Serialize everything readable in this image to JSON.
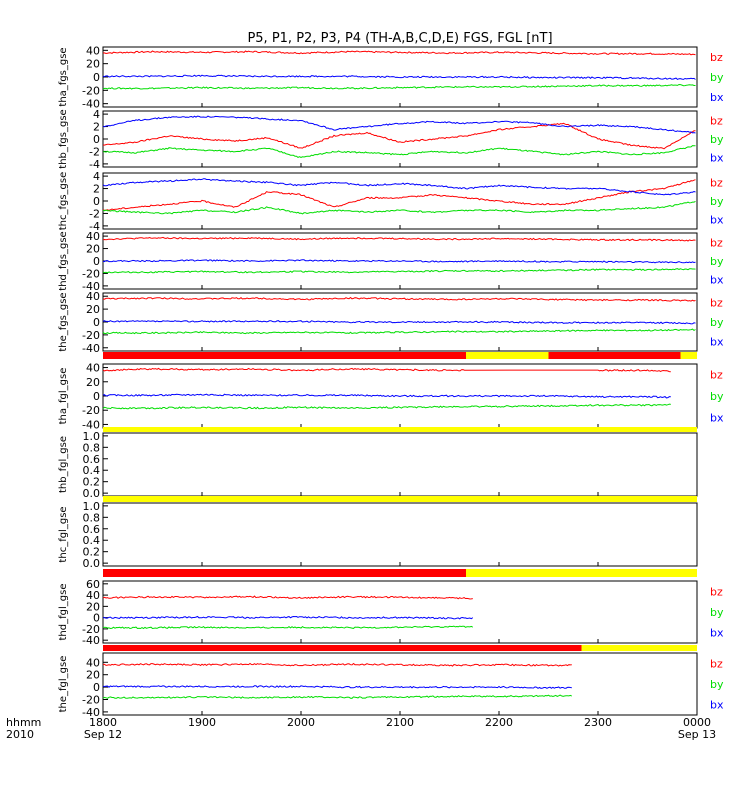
{
  "title": "P5, P1, P2, P3, P4 (TH-A,B,C,D,E) FGS, FGL [nT]",
  "time_axis": {
    "left_label_line1": "hhmm",
    "left_label_line2": "2010",
    "ticks": [
      "1800",
      "1900",
      "2000",
      "2100",
      "2200",
      "2300",
      "0000"
    ],
    "tick_dates": [
      "Sep 12",
      "",
      "",
      "",
      "",
      "",
      "Sep 13"
    ]
  },
  "colors": {
    "bx": "#0000ff",
    "by": "#00dd00",
    "bz": "#ff0000",
    "availability_on": "#ff0000",
    "availability_off": "#ffff00",
    "availability_marker": "#000000"
  },
  "chart_data": [
    {
      "type": "line",
      "ylabel": "tha_fgs_gse",
      "yticks": [
        "40",
        "20",
        "0",
        "-20",
        "-40"
      ],
      "ylim": [
        -45,
        45
      ],
      "legend": [
        "bz",
        "by",
        "bx"
      ],
      "series": [
        {
          "name": "bz",
          "x": [
            1800,
            1830,
            1900,
            1930,
            2000,
            2030,
            2100,
            2130,
            2200,
            2230,
            2300,
            2330,
            2400
          ],
          "values": [
            36,
            38,
            37,
            38,
            36,
            38,
            37,
            36,
            37,
            36,
            35,
            35,
            34
          ]
        },
        {
          "name": "by",
          "x": [
            1800,
            1830,
            1900,
            1930,
            2000,
            2030,
            2100,
            2130,
            2200,
            2230,
            2300,
            2330,
            2400
          ],
          "values": [
            -17,
            -17,
            -16,
            -17,
            -16,
            -17,
            -16,
            -15,
            -15,
            -14,
            -13,
            -13,
            -12
          ]
        },
        {
          "name": "bx",
          "x": [
            1800,
            1830,
            1900,
            1930,
            2000,
            2030,
            2100,
            2130,
            2200,
            2230,
            2300,
            2330,
            2400
          ],
          "values": [
            1,
            1,
            2,
            1,
            1,
            1,
            0,
            0,
            0,
            -1,
            -1,
            -2,
            -3
          ]
        }
      ]
    },
    {
      "type": "line",
      "ylabel": "thb_fgs_gse",
      "yticks": [
        "4",
        "2",
        "0",
        "-2",
        "-4"
      ],
      "ylim": [
        -4.5,
        4.5
      ],
      "legend": [
        "bz",
        "by",
        "bx"
      ],
      "series": [
        {
          "name": "bz",
          "x": [
            1800,
            1820,
            1840,
            1900,
            1920,
            1940,
            2000,
            2020,
            2040,
            2100,
            2120,
            2140,
            2200,
            2220,
            2240,
            2300,
            2320,
            2340,
            2400
          ],
          "values": [
            -1.0,
            -0.5,
            0.5,
            0.0,
            -0.3,
            0.2,
            -1.5,
            0.5,
            1.0,
            -0.5,
            0.0,
            0.5,
            1.5,
            2.0,
            2.5,
            0.0,
            -1.0,
            -1.5,
            1.5
          ]
        },
        {
          "name": "by",
          "x": [
            1800,
            1820,
            1840,
            1900,
            1920,
            1940,
            2000,
            2020,
            2040,
            2100,
            2120,
            2140,
            2200,
            2220,
            2240,
            2300,
            2320,
            2340,
            2400
          ],
          "values": [
            -2.0,
            -2.2,
            -1.5,
            -1.8,
            -2.0,
            -1.5,
            -3.0,
            -2.0,
            -2.2,
            -2.5,
            -2.0,
            -2.2,
            -1.5,
            -2.0,
            -2.5,
            -2.0,
            -2.5,
            -2.2,
            -1.0
          ]
        },
        {
          "name": "bx",
          "x": [
            1800,
            1820,
            1840,
            1900,
            1920,
            1940,
            2000,
            2020,
            2040,
            2100,
            2120,
            2140,
            2200,
            2220,
            2240,
            2300,
            2320,
            2340,
            2400
          ],
          "values": [
            2.0,
            3.0,
            3.5,
            3.6,
            3.5,
            3.2,
            3.0,
            1.5,
            2.0,
            2.5,
            2.8,
            2.5,
            2.8,
            2.6,
            2.0,
            2.2,
            2.0,
            1.5,
            1.0
          ]
        }
      ]
    },
    {
      "type": "line",
      "ylabel": "thc_fgs_gse",
      "yticks": [
        "4",
        "2",
        "0",
        "-2",
        "-4"
      ],
      "ylim": [
        -4.5,
        4.5
      ],
      "legend": [
        "bz",
        "by",
        "bx"
      ],
      "series": [
        {
          "name": "bz",
          "x": [
            1800,
            1820,
            1840,
            1900,
            1920,
            1940,
            2000,
            2020,
            2040,
            2100,
            2120,
            2140,
            2200,
            2220,
            2240,
            2300,
            2320,
            2340,
            2400
          ],
          "values": [
            -1.5,
            -1.0,
            -0.5,
            0.0,
            -1.0,
            1.5,
            1.0,
            -1.0,
            0.5,
            0.5,
            1.0,
            0.5,
            0.0,
            -0.5,
            -0.5,
            0.5,
            1.5,
            2.0,
            3.5
          ]
        },
        {
          "name": "by",
          "x": [
            1800,
            1820,
            1840,
            1900,
            1920,
            1940,
            2000,
            2020,
            2040,
            2100,
            2120,
            2140,
            2200,
            2220,
            2240,
            2300,
            2320,
            2340,
            2400
          ],
          "values": [
            -1.5,
            -1.8,
            -2.0,
            -1.5,
            -1.8,
            -1.0,
            -2.0,
            -1.5,
            -1.8,
            -1.5,
            -1.8,
            -1.5,
            -1.5,
            -1.8,
            -1.5,
            -1.5,
            -1.2,
            -1.0,
            0.0
          ]
        },
        {
          "name": "bx",
          "x": [
            1800,
            1820,
            1840,
            1900,
            1920,
            1940,
            2000,
            2020,
            2040,
            2100,
            2120,
            2140,
            2200,
            2220,
            2240,
            2300,
            2320,
            2340,
            2400
          ],
          "values": [
            2.5,
            3.0,
            3.2,
            3.5,
            3.2,
            3.0,
            2.5,
            3.0,
            2.5,
            2.8,
            2.5,
            2.0,
            2.5,
            2.2,
            2.0,
            2.0,
            1.5,
            1.0,
            1.5
          ]
        }
      ]
    },
    {
      "type": "line",
      "ylabel": "thd_fgs_gse",
      "yticks": [
        "40",
        "20",
        "0",
        "-20",
        "-40"
      ],
      "ylim": [
        -45,
        45
      ],
      "legend": [
        "bz",
        "by",
        "bx"
      ],
      "series": [
        {
          "name": "bz",
          "x": [
            1800,
            1830,
            1900,
            1930,
            2000,
            2030,
            2100,
            2130,
            2200,
            2230,
            2300,
            2330,
            2400
          ],
          "values": [
            35,
            37,
            36,
            37,
            35,
            37,
            36,
            35,
            36,
            35,
            34,
            34,
            33
          ]
        },
        {
          "name": "by",
          "x": [
            1800,
            1830,
            1900,
            1930,
            2000,
            2030,
            2100,
            2130,
            2200,
            2230,
            2300,
            2330,
            2400
          ],
          "values": [
            -18,
            -18,
            -17,
            -18,
            -17,
            -18,
            -17,
            -16,
            -16,
            -15,
            -14,
            -14,
            -13
          ]
        },
        {
          "name": "bx",
          "x": [
            1800,
            1830,
            1900,
            1930,
            2000,
            2030,
            2100,
            2130,
            2200,
            2230,
            2300,
            2330,
            2400
          ],
          "values": [
            0,
            0,
            1,
            0,
            1,
            0,
            0,
            -1,
            0,
            -1,
            -1,
            -2,
            -2
          ]
        }
      ]
    },
    {
      "type": "line",
      "ylabel": "the_fgs_gse",
      "yticks": [
        "40",
        "20",
        "0",
        "-20",
        "-40"
      ],
      "ylim": [
        -45,
        45
      ],
      "legend": [
        "bz",
        "by",
        "bx"
      ],
      "series": [
        {
          "name": "bz",
          "x": [
            1800,
            1830,
            1900,
            1930,
            2000,
            2030,
            2100,
            2130,
            2200,
            2230,
            2300,
            2330,
            2400
          ],
          "values": [
            36,
            37,
            36,
            37,
            35,
            37,
            36,
            35,
            36,
            35,
            34,
            34,
            33
          ]
        },
        {
          "name": "by",
          "x": [
            1800,
            1830,
            1900,
            1930,
            2000,
            2030,
            2100,
            2130,
            2200,
            2230,
            2300,
            2330,
            2400
          ],
          "values": [
            -17,
            -17,
            -16,
            -17,
            -16,
            -17,
            -16,
            -15,
            -15,
            -14,
            -13,
            -13,
            -12
          ]
        },
        {
          "name": "bx",
          "x": [
            1800,
            1830,
            1900,
            1930,
            2000,
            2030,
            2100,
            2130,
            2200,
            2230,
            2300,
            2330,
            2400
          ],
          "values": [
            1,
            1,
            1,
            1,
            1,
            0,
            0,
            0,
            0,
            -1,
            -1,
            -1,
            -2
          ]
        }
      ]
    },
    {
      "type": "line",
      "ylabel": "tha_fgl_gse",
      "yticks": [
        "40",
        "20",
        "0",
        "-20",
        "-40"
      ],
      "ylim": [
        -45,
        45
      ],
      "legend": [
        "bz",
        "by",
        "bx"
      ],
      "availability": [
        {
          "start": 1800,
          "end": 2140,
          "state": "on"
        },
        {
          "start": 2140,
          "end": 2230,
          "state": "off"
        },
        {
          "start": 2230,
          "end": 2350,
          "state": "on"
        },
        {
          "start": 2350,
          "end": 2400,
          "state": "off"
        }
      ],
      "series": [
        {
          "name": "bz",
          "x": [
            1800,
            1830,
            1900,
            1930,
            2000,
            2030,
            2100,
            2130,
            2140,
            2230,
            2300,
            2330,
            2345
          ],
          "values": [
            36,
            38,
            37,
            38,
            36,
            38,
            37,
            36,
            36,
            null,
            36,
            36,
            35
          ]
        },
        {
          "name": "by",
          "x": [
            1800,
            1830,
            1900,
            1930,
            2000,
            2030,
            2100,
            2130,
            2140,
            2230,
            2300,
            2330,
            2345
          ],
          "values": [
            -17,
            -17,
            -16,
            -17,
            -16,
            -17,
            -16,
            -15,
            -15,
            -14,
            -13,
            -13,
            -12
          ]
        },
        {
          "name": "bx",
          "x": [
            1800,
            1830,
            1900,
            1930,
            2000,
            2030,
            2100,
            2130,
            2140,
            2230,
            2300,
            2330,
            2345
          ],
          "values": [
            1,
            1,
            2,
            1,
            1,
            1,
            0,
            0,
            0,
            0,
            -1,
            -1,
            -2
          ]
        }
      ]
    },
    {
      "type": "line",
      "ylabel": "thb_fgl_gse",
      "yticks": [
        "1.0",
        "0.8",
        "0.6",
        "0.4",
        "0.2",
        "0.0"
      ],
      "ylim": [
        -0.05,
        1.05
      ],
      "legend": [],
      "availability": [
        {
          "start": 1800,
          "end": 2400,
          "state": "off"
        }
      ],
      "series": []
    },
    {
      "type": "line",
      "ylabel": "thc_fgl_gse",
      "yticks": [
        "1.0",
        "0.8",
        "0.6",
        "0.4",
        "0.2",
        "0.0"
      ],
      "ylim": [
        -0.05,
        1.05
      ],
      "legend": [],
      "availability": [
        {
          "start": 1800,
          "end": 2400,
          "state": "off"
        }
      ],
      "series": []
    },
    {
      "type": "line",
      "ylabel": "thd_fgl_gse",
      "yticks": [
        "60",
        "40",
        "20",
        "0",
        "-20",
        "-40"
      ],
      "ylim": [
        -45,
        65
      ],
      "legend": [
        "bz",
        "by",
        "bx"
      ],
      "availability": [
        {
          "start": 1800,
          "end": 2140,
          "state": "on"
        },
        {
          "start": 2140,
          "end": 2400,
          "state": "off"
        }
      ],
      "series": [
        {
          "name": "bz",
          "x": [
            1800,
            1830,
            1900,
            1930,
            2000,
            2030,
            2100,
            2130,
            2145
          ],
          "values": [
            35,
            37,
            36,
            37,
            35,
            37,
            36,
            35,
            34
          ]
        },
        {
          "name": "by",
          "x": [
            1800,
            1830,
            1900,
            1930,
            2000,
            2030,
            2100,
            2130,
            2145
          ],
          "values": [
            -18,
            -18,
            -17,
            -18,
            -17,
            -18,
            -17,
            -16,
            -16
          ]
        },
        {
          "name": "bx",
          "x": [
            1800,
            1830,
            1900,
            1930,
            2000,
            2030,
            2100,
            2130,
            2145
          ],
          "values": [
            0,
            0,
            1,
            0,
            1,
            0,
            0,
            -1,
            -1
          ]
        }
      ]
    },
    {
      "type": "line",
      "ylabel": "the_fgl_gse",
      "yticks": [
        "40",
        "20",
        "0",
        "-20",
        "-40"
      ],
      "ylim": [
        -45,
        55
      ],
      "legend": [
        "bz",
        "by",
        "bx"
      ],
      "availability": [
        {
          "start": 1800,
          "end": 2250,
          "state": "on"
        },
        {
          "start": 2250,
          "end": 2400,
          "state": "off"
        }
      ],
      "series": [
        {
          "name": "bz",
          "x": [
            1800,
            1830,
            1900,
            1930,
            2000,
            2030,
            2100,
            2130,
            2200,
            2230,
            2245
          ],
          "values": [
            36,
            37,
            36,
            37,
            35,
            37,
            36,
            35,
            36,
            35,
            35
          ]
        },
        {
          "name": "by",
          "x": [
            1800,
            1830,
            1900,
            1930,
            2000,
            2030,
            2100,
            2130,
            2200,
            2230,
            2245
          ],
          "values": [
            -17,
            -17,
            -16,
            -17,
            -16,
            -17,
            -16,
            -15,
            -15,
            -14,
            -14
          ]
        },
        {
          "name": "bx",
          "x": [
            1800,
            1830,
            1900,
            1930,
            2000,
            2030,
            2100,
            2130,
            2200,
            2230,
            2245
          ],
          "values": [
            1,
            1,
            1,
            1,
            1,
            0,
            0,
            0,
            0,
            -1,
            -1
          ]
        }
      ]
    }
  ]
}
